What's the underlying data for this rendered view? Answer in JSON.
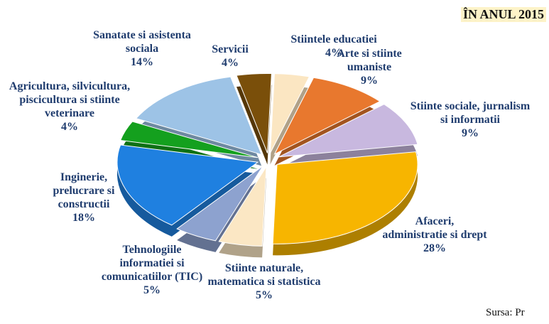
{
  "chart_data": {
    "type": "pie",
    "title": "ÎN ANUL 2015",
    "source": "Sursa: Pr",
    "categories": [
      "Stiintele educatiei",
      "Arte si stiinte umaniste",
      "Stiinte sociale, jurnalism si informatii",
      "Afaceri, administratie si drept",
      "Stiinte naturale, matematica si statistica",
      "Tehnologiile informatiei si comunicatiilor (TIC)",
      "Inginerie, prelucrare si constructii",
      "Agricultura, silvicultura, piscicultura si stiinte veterinare",
      "Sanatate si asistenta sociala",
      "Servicii"
    ],
    "values": [
      4,
      9,
      9,
      28,
      5,
      5,
      18,
      4,
      14,
      4
    ],
    "value_labels": [
      "4%",
      "9%",
      "9%",
      "28%",
      "5%",
      "5%",
      "18%",
      "4%",
      "14%",
      "4%"
    ],
    "colors": [
      "#fbe6c2",
      "#e8782e",
      "#c8b8df",
      "#f7b500",
      "#fbe7c4",
      "#8da2cf",
      "#1f80e0",
      "#14a01e",
      "#9dc3e6",
      "#7a4f0a"
    ]
  }
}
